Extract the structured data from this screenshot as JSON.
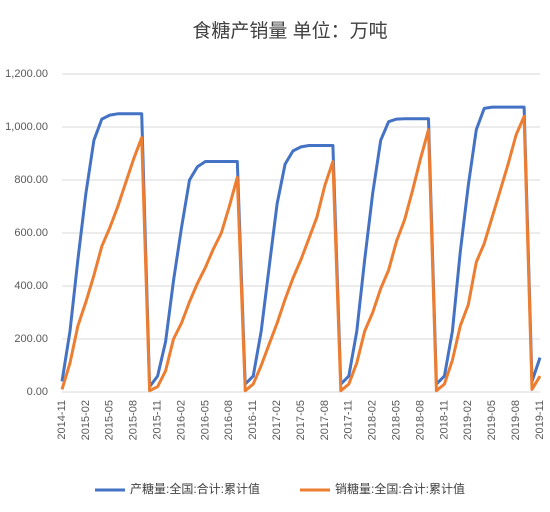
{
  "chart_data": {
    "type": "line",
    "title": "食糖产销量 单位：万吨",
    "categories": [
      "2014-11",
      null,
      null,
      "2015-02",
      null,
      null,
      "2015-05",
      null,
      null,
      "2015-08",
      null,
      null,
      "2015-11",
      null,
      null,
      "2016-02",
      null,
      null,
      "2016-05",
      null,
      null,
      "2016-08",
      null,
      null,
      "2016-11",
      null,
      null,
      "2017-02",
      null,
      null,
      "2017-05",
      null,
      null,
      "2017-08",
      null,
      null,
      "2017-11",
      null,
      null,
      "2018-02",
      null,
      null,
      "2018-05",
      null,
      null,
      "2018-08",
      null,
      null,
      "2018-11",
      null,
      null,
      "2019-02",
      null,
      null,
      "2019-05",
      null,
      null,
      "2019-08",
      null,
      null,
      "2019-11"
    ],
    "series": [
      {
        "name": "产糖量:全国:合计:累计值",
        "color": "#4472c4",
        "values": [
          40,
          230,
          500,
          750,
          950,
          1030,
          1045,
          1050,
          1050,
          1050,
          1050,
          20,
          60,
          190,
          420,
          620,
          800,
          850,
          870,
          870,
          870,
          870,
          870,
          30,
          60,
          230,
          470,
          710,
          860,
          910,
          925,
          930,
          930,
          930,
          930,
          30,
          60,
          230,
          500,
          750,
          950,
          1020,
          1030,
          1031,
          1031,
          1031,
          1031,
          30,
          60,
          230,
          530,
          780,
          990,
          1070,
          1075,
          1075,
          1075,
          1075,
          1075,
          40,
          130
        ]
      },
      {
        "name": "销糖量:全国:合计:累计值",
        "color": "#ed7d31",
        "values": [
          10,
          110,
          250,
          340,
          440,
          550,
          620,
          700,
          790,
          880,
          960,
          5,
          20,
          80,
          200,
          260,
          340,
          410,
          470,
          540,
          600,
          700,
          810,
          5,
          30,
          100,
          180,
          260,
          350,
          430,
          500,
          580,
          660,
          780,
          870,
          5,
          30,
          110,
          230,
          300,
          390,
          460,
          570,
          650,
          760,
          880,
          990,
          5,
          30,
          120,
          250,
          330,
          490,
          560,
          660,
          760,
          860,
          970,
          1040,
          10,
          60
        ]
      }
    ],
    "ylim": [
      0,
      1200
    ],
    "yticks": [
      {
        "value": 0,
        "label": "0.00"
      },
      {
        "value": 200,
        "label": "200.00"
      },
      {
        "value": 400,
        "label": "400.00"
      },
      {
        "value": 600,
        "label": "600.00"
      },
      {
        "value": 800,
        "label": "800.00"
      },
      {
        "value": 1000,
        "label": "1,000.00"
      },
      {
        "value": 1200,
        "label": "1,200.00"
      }
    ],
    "grid": true,
    "legend": "bottom"
  }
}
